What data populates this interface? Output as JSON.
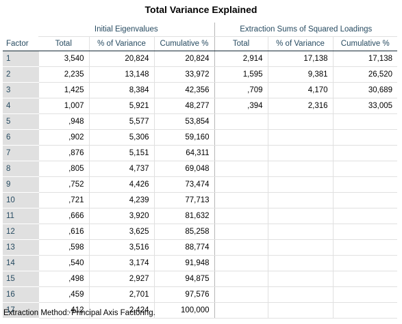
{
  "title": "Total Variance Explained",
  "header": {
    "corner": "Factor",
    "group1": "Initial Eigenvalues",
    "group2": "Extraction Sums of Squared Loadings",
    "columns": [
      "Total",
      "% of Variance",
      "Cumulative %",
      "Total",
      "% of Variance",
      "Cumulative %"
    ]
  },
  "rows": [
    {
      "factor": "1",
      "cells": [
        "3,540",
        "20,824",
        "20,824",
        "2,914",
        "17,138",
        "17,138"
      ]
    },
    {
      "factor": "2",
      "cells": [
        "2,235",
        "13,148",
        "33,972",
        "1,595",
        "9,381",
        "26,520"
      ]
    },
    {
      "factor": "3",
      "cells": [
        "1,425",
        "8,384",
        "42,356",
        ",709",
        "4,170",
        "30,689"
      ]
    },
    {
      "factor": "4",
      "cells": [
        "1,007",
        "5,921",
        "48,277",
        ",394",
        "2,316",
        "33,005"
      ]
    },
    {
      "factor": "5",
      "cells": [
        ",948",
        "5,577",
        "53,854",
        "",
        "",
        ""
      ]
    },
    {
      "factor": "6",
      "cells": [
        ",902",
        "5,306",
        "59,160",
        "",
        "",
        ""
      ]
    },
    {
      "factor": "7",
      "cells": [
        ",876",
        "5,151",
        "64,311",
        "",
        "",
        ""
      ]
    },
    {
      "factor": "8",
      "cells": [
        ",805",
        "4,737",
        "69,048",
        "",
        "",
        ""
      ]
    },
    {
      "factor": "9",
      "cells": [
        ",752",
        "4,426",
        "73,474",
        "",
        "",
        ""
      ]
    },
    {
      "factor": "10",
      "cells": [
        ",721",
        "4,239",
        "77,713",
        "",
        "",
        ""
      ]
    },
    {
      "factor": "11",
      "cells": [
        ",666",
        "3,920",
        "81,632",
        "",
        "",
        ""
      ]
    },
    {
      "factor": "12",
      "cells": [
        ",616",
        "3,625",
        "85,258",
        "",
        "",
        ""
      ]
    },
    {
      "factor": "13",
      "cells": [
        ",598",
        "3,516",
        "88,774",
        "",
        "",
        ""
      ]
    },
    {
      "factor": "14",
      "cells": [
        ",540",
        "3,174",
        "91,948",
        "",
        "",
        ""
      ]
    },
    {
      "factor": "15",
      "cells": [
        ",498",
        "2,927",
        "94,875",
        "",
        "",
        ""
      ]
    },
    {
      "factor": "16",
      "cells": [
        ",459",
        "2,701",
        "97,576",
        "",
        "",
        ""
      ]
    },
    {
      "factor": "17",
      "cells": [
        ",412",
        "2,424",
        "100,000",
        "",
        "",
        ""
      ]
    }
  ],
  "footnote": "Extraction Method: Principal Axis Factoring."
}
